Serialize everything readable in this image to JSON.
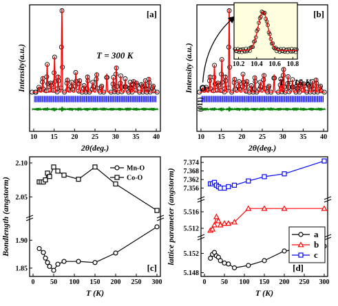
{
  "chart_data": [
    {
      "panel_label": "[a]",
      "type": "scatter",
      "annotation": "T = 300 K",
      "xlabel": "2θ(deg.)",
      "ylabel": "Intensity(a.u.)",
      "xticks": [
        "10",
        "15",
        "20",
        "25",
        "30",
        "35",
        "40"
      ],
      "xlim": [
        9,
        41
      ],
      "series": [
        {
          "kind": "observed",
          "color": "#000000"
        },
        {
          "kind": "calculated",
          "color": "#ff0000"
        },
        {
          "kind": "bragg",
          "color": "#0000ff"
        },
        {
          "kind": "difference",
          "color": "#008000"
        }
      ],
      "peaks": [
        {
          "x": 11.3,
          "h": 0.06
        },
        {
          "x": 12.2,
          "h": 0.18
        },
        {
          "x": 13.3,
          "h": 0.34
        },
        {
          "x": 14.2,
          "h": 0.12
        },
        {
          "x": 15.1,
          "h": 0.43
        },
        {
          "x": 16.0,
          "h": 0.2
        },
        {
          "x": 16.9,
          "h": 1.0
        },
        {
          "x": 18.2,
          "h": 0.16
        },
        {
          "x": 19.3,
          "h": 0.12
        },
        {
          "x": 20.3,
          "h": 0.24
        },
        {
          "x": 21.2,
          "h": 0.15
        },
        {
          "x": 22.3,
          "h": 0.08
        },
        {
          "x": 23.2,
          "h": 0.2
        },
        {
          "x": 24.5,
          "h": 0.12
        },
        {
          "x": 25.4,
          "h": 0.23
        },
        {
          "x": 26.6,
          "h": 0.08
        },
        {
          "x": 27.9,
          "h": 0.22
        },
        {
          "x": 29.5,
          "h": 0.18
        },
        {
          "x": 30.2,
          "h": 0.32
        },
        {
          "x": 31.3,
          "h": 0.2
        },
        {
          "x": 32.4,
          "h": 0.16
        },
        {
          "x": 33.6,
          "h": 0.12
        },
        {
          "x": 34.4,
          "h": 0.14
        },
        {
          "x": 35.2,
          "h": 0.12
        },
        {
          "x": 36.4,
          "h": 0.1
        },
        {
          "x": 37.3,
          "h": 0.14
        },
        {
          "x": 38.2,
          "h": 0.17
        },
        {
          "x": 39.2,
          "h": 0.08
        }
      ]
    },
    {
      "panel_label": "[b]",
      "type": "scatter",
      "annotation": "T = 15 K",
      "xlabel": "2θ(deg.)",
      "ylabel": "Intensity (a.u.)",
      "xticks": [
        "10",
        "15",
        "20",
        "25",
        "30",
        "35",
        "40"
      ],
      "xlim": [
        9,
        41
      ],
      "peak_label": "(011)",
      "peaks": [
        {
          "x": 10.45,
          "h": 0.05
        },
        {
          "x": 11.3,
          "h": 0.06
        },
        {
          "x": 12.2,
          "h": 0.2
        },
        {
          "x": 13.3,
          "h": 0.33
        },
        {
          "x": 14.2,
          "h": 0.12
        },
        {
          "x": 15.1,
          "h": 0.4
        },
        {
          "x": 16.0,
          "h": 0.2
        },
        {
          "x": 16.9,
          "h": 1.0
        },
        {
          "x": 18.2,
          "h": 0.17
        },
        {
          "x": 19.3,
          "h": 0.13
        },
        {
          "x": 20.3,
          "h": 0.22
        },
        {
          "x": 21.2,
          "h": 0.14
        },
        {
          "x": 22.3,
          "h": 0.08
        },
        {
          "x": 23.2,
          "h": 0.19
        },
        {
          "x": 24.5,
          "h": 0.12
        },
        {
          "x": 25.4,
          "h": 0.22
        },
        {
          "x": 26.6,
          "h": 0.08
        },
        {
          "x": 27.9,
          "h": 0.21
        },
        {
          "x": 29.5,
          "h": 0.16
        },
        {
          "x": 30.2,
          "h": 0.3
        },
        {
          "x": 31.3,
          "h": 0.19
        },
        {
          "x": 32.4,
          "h": 0.15
        },
        {
          "x": 33.6,
          "h": 0.11
        },
        {
          "x": 34.4,
          "h": 0.13
        },
        {
          "x": 35.2,
          "h": 0.11
        },
        {
          "x": 36.4,
          "h": 0.1
        },
        {
          "x": 37.3,
          "h": 0.13
        },
        {
          "x": 38.2,
          "h": 0.16
        },
        {
          "x": 39.2,
          "h": 0.08
        }
      ],
      "inset": {
        "xticks": [
          "10.2",
          "10.4",
          "10.6",
          "10.8"
        ],
        "xlim": [
          10.15,
          10.85
        ],
        "peak_center": 10.47,
        "background": "#ffffe0"
      }
    },
    {
      "panel_label": "[c]",
      "type": "line",
      "xlabel": "T (K)",
      "ylabel": "Bondlength (angstorm)",
      "xlim": [
        0,
        300
      ],
      "xticks": [
        0,
        50,
        100,
        150,
        200,
        250,
        300
      ],
      "broken_axis": true,
      "upper_ylim": [
        2.025,
        2.105
      ],
      "upper_yticks": [
        "2.05",
        "2.10"
      ],
      "lower_ylim": [
        1.84,
        1.93
      ],
      "lower_yticks": [
        "1.85",
        "1.90"
      ],
      "legend": "top-right",
      "series": [
        {
          "name": "Mn-O",
          "marker": "circle",
          "color": "#000000",
          "x": [
            15,
            25,
            30,
            35,
            40,
            50,
            60,
            75,
            110,
            150,
            200,
            300
          ],
          "y": [
            1.885,
            1.878,
            1.868,
            1.86,
            1.853,
            1.846,
            1.857,
            1.862,
            1.862,
            1.86,
            1.877,
            1.924
          ]
        },
        {
          "name": "Co-O",
          "marker": "square",
          "color": "#000000",
          "x": [
            15,
            20,
            25,
            30,
            35,
            40,
            50,
            60,
            75,
            110,
            150,
            200,
            300
          ],
          "y": [
            2.072,
            2.072,
            2.072,
            2.075,
            2.085,
            2.08,
            2.094,
            2.088,
            2.082,
            2.076,
            2.094,
            2.069,
            2.03
          ]
        }
      ]
    },
    {
      "panel_label": "[d]",
      "type": "line",
      "xlabel": "T (K)",
      "ylabel": "lattice parameter (angstorm)",
      "xlim": [
        0,
        300
      ],
      "xticks": [
        0,
        50,
        100,
        150,
        200,
        250,
        300
      ],
      "broken_axis": true,
      "top_ylim": [
        7.35,
        7.376
      ],
      "top_yticks": [
        "7.356",
        "7.362",
        "7.368",
        "7.374"
      ],
      "mid_ylim": [
        5.5105,
        5.518
      ],
      "mid_yticks": [
        "5.512",
        "5.516"
      ],
      "bottom_ylim": [
        5.1475,
        5.1545
      ],
      "bottom_yticks": [
        "5.148",
        "5.152"
      ],
      "legend": "lower-right",
      "series": [
        {
          "name": "a",
          "marker": "circle",
          "color": "#000000",
          "x": [
            15,
            20,
            25,
            30,
            35,
            40,
            50,
            60,
            75,
            110,
            150,
            200,
            300
          ],
          "y": [
            5.151,
            5.1518,
            5.1522,
            5.1515,
            5.1512,
            5.1505,
            5.15,
            5.1498,
            5.149,
            5.1495,
            5.1505,
            5.1525,
            5.1535
          ]
        },
        {
          "name": "b",
          "marker": "triangle",
          "color": "#ff0000",
          "x": [
            15,
            20,
            25,
            30,
            35,
            40,
            50,
            60,
            75,
            110,
            150,
            200,
            300
          ],
          "y": [
            5.5115,
            5.5118,
            5.5128,
            5.5148,
            5.5138,
            5.5128,
            5.5132,
            5.5132,
            5.5135,
            5.5168,
            5.5168,
            5.5168,
            5.5168
          ]
        },
        {
          "name": "c",
          "marker": "square",
          "color": "#0000ff",
          "x": [
            15,
            20,
            25,
            30,
            35,
            40,
            50,
            60,
            75,
            110,
            150,
            200,
            300
          ],
          "y": [
            7.359,
            7.359,
            7.36,
            7.358,
            7.357,
            7.356,
            7.356,
            7.357,
            7.358,
            7.361,
            7.364,
            7.366,
            7.375
          ]
        }
      ]
    }
  ]
}
